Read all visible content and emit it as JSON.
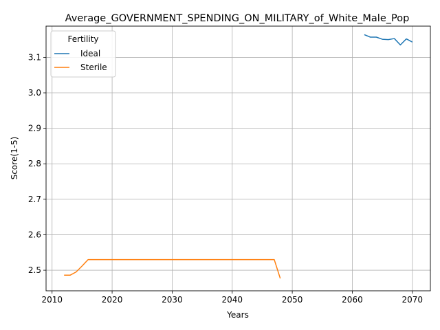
{
  "chart_data": {
    "type": "line",
    "title": "Average_GOVERNMENT_SPENDING_ON_MILITARY_of_White_Male_Pop",
    "xlabel": "Years",
    "ylabel": "Score(1-5)",
    "xlim": [
      2009,
      2073
    ],
    "ylim": [
      2.442,
      3.188
    ],
    "xticks": [
      2010,
      2020,
      2030,
      2040,
      2050,
      2060,
      2070
    ],
    "yticks": [
      2.5,
      2.6,
      2.7,
      2.8,
      2.9,
      3.0,
      3.1
    ],
    "grid": true,
    "legend": {
      "title": "Fertility",
      "placement": "upper-left"
    },
    "series": [
      {
        "name": "Ideal",
        "color": "#1f77b4",
        "x": [
          2062,
          2063,
          2064,
          2065,
          2066,
          2067,
          2068,
          2069,
          2070
        ],
        "y": [
          3.164,
          3.157,
          3.157,
          3.151,
          3.15,
          3.153,
          3.135,
          3.152,
          3.143
        ]
      },
      {
        "name": "Sterile",
        "color": "#ff7f0e",
        "x": [
          2012,
          2013,
          2014,
          2015,
          2016,
          2017,
          2018,
          2019,
          2020,
          2021,
          2022,
          2023,
          2024,
          2025,
          2026,
          2027,
          2028,
          2029,
          2030,
          2031,
          2032,
          2033,
          2034,
          2035,
          2036,
          2037,
          2038,
          2039,
          2040,
          2041,
          2042,
          2043,
          2044,
          2045,
          2046,
          2047,
          2048
        ],
        "y": [
          2.486,
          2.486,
          2.495,
          2.512,
          2.53,
          2.53,
          2.53,
          2.53,
          2.53,
          2.53,
          2.53,
          2.53,
          2.53,
          2.53,
          2.53,
          2.53,
          2.53,
          2.53,
          2.53,
          2.53,
          2.53,
          2.53,
          2.53,
          2.53,
          2.53,
          2.53,
          2.53,
          2.53,
          2.53,
          2.53,
          2.53,
          2.53,
          2.53,
          2.53,
          2.53,
          2.53,
          2.477
        ]
      }
    ]
  }
}
